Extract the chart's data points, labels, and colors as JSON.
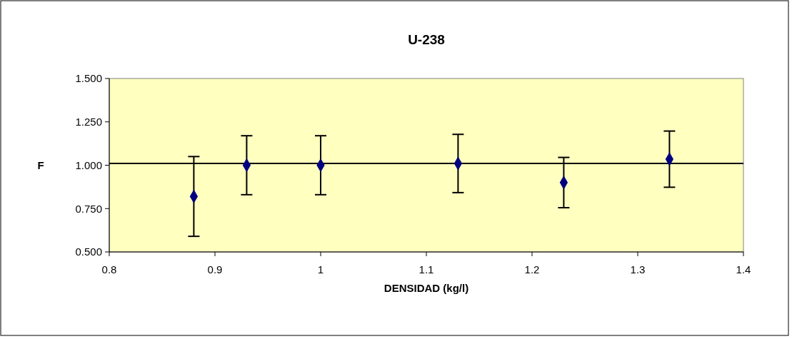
{
  "chart_data": {
    "type": "scatter",
    "title": "U-238",
    "xlabel": "DENSIDAD (kg/l)",
    "ylabel": "F",
    "x": [
      0.88,
      0.93,
      1.0,
      1.13,
      1.23,
      1.33
    ],
    "series": [
      {
        "color": "#000080",
        "values": [
          0.82,
          1.0,
          1.0,
          1.01,
          0.9,
          1.035
        ],
        "errors": [
          0.23,
          0.17,
          0.17,
          0.168,
          0.145,
          0.162
        ]
      }
    ],
    "xlim": [
      0.8,
      1.4
    ],
    "xticks": [
      0.8,
      0.9,
      1,
      1.1,
      1.2,
      1.3,
      1.4
    ],
    "ylim": [
      0.5,
      1.5
    ],
    "yticks": [
      {
        "value": 0.5,
        "label": "0.500"
      },
      {
        "value": 0.75,
        "label": "0.750"
      },
      {
        "value": 1.0,
        "label": "1.000"
      },
      {
        "value": 1.25,
        "label": "1.250"
      },
      {
        "value": 1.5,
        "label": "1.500"
      }
    ],
    "ref_lines": [
      {
        "axis": "y",
        "value": 1.01,
        "color": "#000000"
      }
    ],
    "marker": "diamond",
    "grid": false
  }
}
